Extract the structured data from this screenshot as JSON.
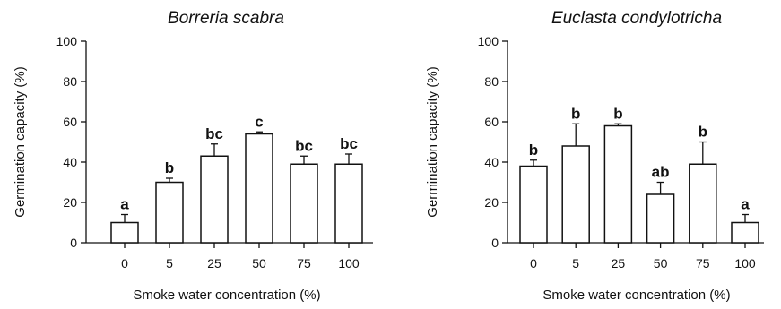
{
  "chart_data": [
    {
      "type": "bar",
      "title": "Borreria scabra",
      "xlabel": "Smoke water concentration (%)",
      "ylabel": "Germination capacity (%)",
      "ylim": [
        0,
        100
      ],
      "yticks": [
        0,
        20,
        40,
        60,
        80,
        100
      ],
      "categories": [
        "0",
        "5",
        "25",
        "50",
        "75",
        "100"
      ],
      "values": [
        10,
        30,
        43,
        54,
        39,
        39
      ],
      "errors": [
        4,
        2,
        6,
        1,
        4,
        5
      ],
      "significance": [
        "a",
        "b",
        "bc",
        "c",
        "bc",
        "bc"
      ],
      "grid": false,
      "bar_color": "#ffffff"
    },
    {
      "type": "bar",
      "title": "Euclasta condylotricha",
      "xlabel": "Smoke water concentration (%)",
      "ylabel": "Germination capacity (%)",
      "ylim": [
        0,
        100
      ],
      "yticks": [
        0,
        20,
        40,
        60,
        80,
        100
      ],
      "categories": [
        "0",
        "5",
        "25",
        "50",
        "75",
        "100"
      ],
      "values": [
        38,
        48,
        58,
        24,
        39,
        10
      ],
      "errors": [
        3,
        11,
        1,
        6,
        11,
        4
      ],
      "significance": [
        "b",
        "b",
        "b",
        "ab",
        "b",
        "a"
      ],
      "grid": false,
      "bar_color": "#ffffff"
    }
  ]
}
